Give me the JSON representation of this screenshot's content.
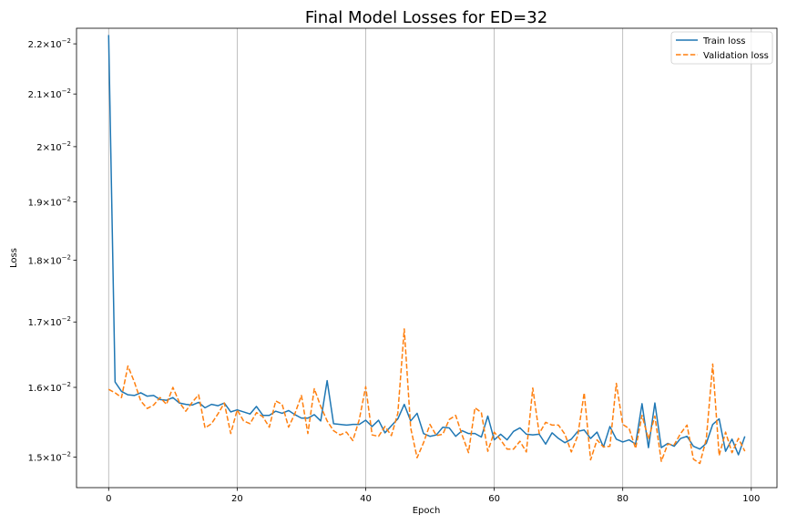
{
  "chart_data": {
    "type": "line",
    "title": "Final Model Losses for ED=32",
    "xlabel": "Epoch",
    "ylabel": "Loss",
    "xlim": [
      -5,
      104
    ],
    "ylim": [
      0.01458,
      0.02232
    ],
    "yscale": "log",
    "grid": "x-only",
    "legend_position": "top-right",
    "x_ticks": [
      {
        "value": 0,
        "label": "0"
      },
      {
        "value": 20,
        "label": "20"
      },
      {
        "value": 40,
        "label": "40"
      },
      {
        "value": 60,
        "label": "60"
      },
      {
        "value": 80,
        "label": "80"
      },
      {
        "value": 100,
        "label": "100"
      }
    ],
    "y_ticks": [
      {
        "value": 0.015,
        "mant": "1.5",
        "exp": "−2"
      },
      {
        "value": 0.016,
        "mant": "1.6",
        "exp": "−2"
      },
      {
        "value": 0.017,
        "mant": "1.7",
        "exp": "−2"
      },
      {
        "value": 0.018,
        "mant": "1.8",
        "exp": "−2"
      },
      {
        "value": 0.019,
        "mant": "1.9",
        "exp": "−2"
      },
      {
        "value": 0.02,
        "mant": "2",
        "exp": "−2"
      },
      {
        "value": 0.021,
        "mant": "2.1",
        "exp": "−2"
      },
      {
        "value": 0.022,
        "mant": "2.2",
        "exp": "−2"
      }
    ],
    "x": [
      0,
      1,
      2,
      3,
      4,
      5,
      6,
      7,
      8,
      9,
      10,
      11,
      12,
      13,
      14,
      15,
      16,
      17,
      18,
      19,
      20,
      21,
      22,
      23,
      24,
      25,
      26,
      27,
      28,
      29,
      30,
      31,
      32,
      33,
      34,
      35,
      36,
      37,
      38,
      39,
      40,
      41,
      42,
      43,
      44,
      45,
      46,
      47,
      48,
      49,
      50,
      51,
      52,
      53,
      54,
      55,
      56,
      57,
      58,
      59,
      60,
      61,
      62,
      63,
      64,
      65,
      66,
      67,
      68,
      69,
      70,
      71,
      72,
      73,
      74,
      75,
      76,
      77,
      78,
      79,
      80,
      81,
      82,
      83,
      84,
      85,
      86,
      87,
      88,
      89,
      90,
      91,
      92,
      93,
      94,
      95,
      96,
      97,
      98,
      99
    ],
    "series": [
      {
        "name": "Train loss",
        "color": "#1f77b4",
        "dash": "solid",
        "values": [
          0.02218,
          0.01608,
          0.01594,
          0.01589,
          0.01588,
          0.01592,
          0.01587,
          0.01588,
          0.01582,
          0.01581,
          0.01585,
          0.01577,
          0.01575,
          0.01574,
          0.01578,
          0.0157,
          0.01575,
          0.01573,
          0.01577,
          0.01564,
          0.01567,
          0.01564,
          0.01561,
          0.01572,
          0.01559,
          0.01559,
          0.01565,
          0.01562,
          0.01566,
          0.0156,
          0.01555,
          0.01555,
          0.0156,
          0.01551,
          0.0161,
          0.01547,
          0.01546,
          0.01545,
          0.01546,
          0.01546,
          0.01552,
          0.01543,
          0.01552,
          0.01534,
          0.01544,
          0.01554,
          0.01575,
          0.01551,
          0.01562,
          0.01533,
          0.01529,
          0.01531,
          0.01542,
          0.01541,
          0.01529,
          0.01537,
          0.01533,
          0.01533,
          0.01528,
          0.01558,
          0.01524,
          0.01532,
          0.01524,
          0.01536,
          0.01541,
          0.01532,
          0.01531,
          0.01532,
          0.01518,
          0.01534,
          0.01526,
          0.0152,
          0.01525,
          0.01536,
          0.01538,
          0.01526,
          0.01535,
          0.01514,
          0.01543,
          0.01525,
          0.01521,
          0.01524,
          0.01518,
          0.01576,
          0.01513,
          0.01577,
          0.01513,
          0.01519,
          0.01515,
          0.01526,
          0.01529,
          0.01515,
          0.01511,
          0.01519,
          0.01546,
          0.01554,
          0.01508,
          0.01525,
          0.01503,
          0.01529
        ]
      },
      {
        "name": "Validation loss",
        "color": "#ff7f0e",
        "dash": "dashed",
        "values": [
          0.01597,
          0.01592,
          0.01585,
          0.01632,
          0.01608,
          0.0158,
          0.01569,
          0.01574,
          0.01585,
          0.01575,
          0.016,
          0.01578,
          0.01565,
          0.01578,
          0.01589,
          0.01541,
          0.01547,
          0.01561,
          0.01577,
          0.01533,
          0.01567,
          0.01551,
          0.01547,
          0.01563,
          0.01557,
          0.01542,
          0.0158,
          0.01575,
          0.01542,
          0.01562,
          0.01588,
          0.01533,
          0.01598,
          0.01572,
          0.01551,
          0.01537,
          0.01531,
          0.01535,
          0.01523,
          0.01553,
          0.01601,
          0.01531,
          0.01529,
          0.01543,
          0.0153,
          0.01562,
          0.01689,
          0.01541,
          0.01499,
          0.0152,
          0.01546,
          0.0153,
          0.01532,
          0.01553,
          0.01559,
          0.01531,
          0.01506,
          0.0157,
          0.01563,
          0.01508,
          0.01535,
          0.01524,
          0.01511,
          0.01511,
          0.01522,
          0.01507,
          0.01599,
          0.01533,
          0.01549,
          0.01545,
          0.01545,
          0.01532,
          0.01507,
          0.0153,
          0.01592,
          0.01496,
          0.01524,
          0.01514,
          0.01515,
          0.01606,
          0.01546,
          0.0154,
          0.01512,
          0.01559,
          0.01525,
          0.01558,
          0.01494,
          0.01518,
          0.01517,
          0.01533,
          0.01545,
          0.01497,
          0.01491,
          0.01525,
          0.01635,
          0.01502,
          0.01535,
          0.01506,
          0.01526,
          0.01508
        ]
      }
    ]
  }
}
